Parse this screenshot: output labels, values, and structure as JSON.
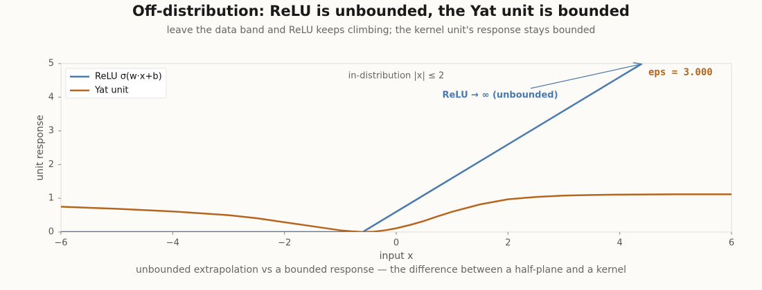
{
  "chart_data": {
    "type": "line",
    "title": "Off-distribution: ReLU is unbounded, the Yat unit is bounded",
    "subtitle": "leave the data band and ReLU keeps climbing; the kernel unit's response stays bounded",
    "x_label": "input  x",
    "y_label": "unit response",
    "caption": "unbounded extrapolation vs a bounded response — the difference between a half-plane and a kernel",
    "annotations": [
      "in-distribution  |x| ≤ 2",
      "ReLU → ∞ (unbounded)",
      "eps = 3.000"
    ],
    "series": [
      {
        "name": "ReLU σ(w·x+b)",
        "color": "#4a7aad",
        "x": [
          -6,
          -0.6,
          4.4
        ],
        "values": [
          0,
          0,
          5
        ]
      },
      {
        "name": "Yat unit",
        "color": "#b5651d",
        "x": [
          -6,
          -5,
          -4,
          -3,
          -2.5,
          -2,
          -1.5,
          -1,
          -0.8,
          -0.6,
          -0.4,
          -0.2,
          0,
          0.25,
          0.5,
          0.75,
          1,
          1.5,
          2,
          2.5,
          3,
          3.5,
          4,
          5,
          6
        ],
        "values": [
          0.75,
          0.69,
          0.61,
          0.5,
          0.41,
          0.29,
          0.17,
          0.05,
          0.02,
          0.0,
          0.01,
          0.05,
          0.11,
          0.21,
          0.33,
          0.47,
          0.6,
          0.82,
          0.97,
          1.04,
          1.08,
          1.1,
          1.11,
          1.12,
          1.12
        ]
      }
    ],
    "xlim": [
      -6,
      6
    ],
    "xticks": [
      {
        "value": -6,
        "label": "−6"
      },
      {
        "value": -4,
        "label": "−4"
      },
      {
        "value": -2,
        "label": "−2"
      },
      0,
      2,
      4,
      6
    ],
    "ylim": [
      0,
      5
    ],
    "yticks": [
      0,
      1,
      2,
      3,
      4,
      5
    ],
    "legend": "upper left"
  }
}
